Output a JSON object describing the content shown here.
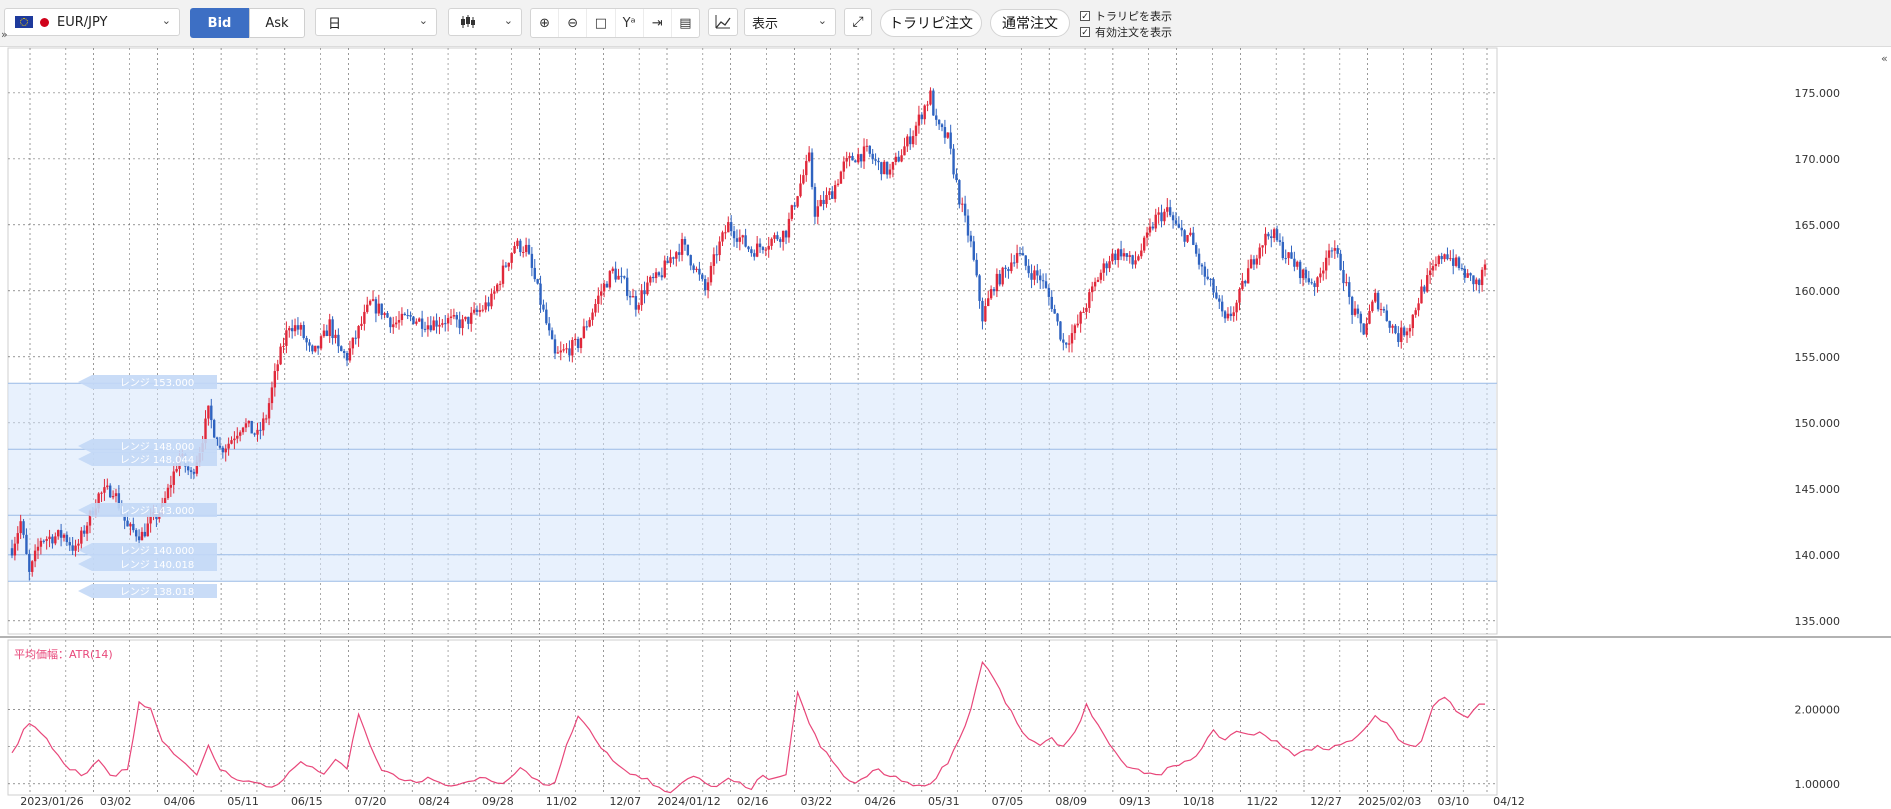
{
  "toolbar": {
    "symbol": "EUR/JPY",
    "flag_left_icon": "eu-flag-icon",
    "flag_right_icon": "japan-flag-icon",
    "bid_label": "Bid",
    "ask_label": "Ask",
    "timeframe": "日",
    "chart_type_icon": "candlestick-icon",
    "tools": [
      "zoom-in-icon",
      "zoom-out-icon",
      "fit-screen-icon",
      "crosshair-lock-icon",
      "jump-to-latest-icon",
      "document-icon"
    ],
    "indicator_icon": "add-indicator-icon",
    "display_select": "表示",
    "expand_icon": "expand-icon",
    "trap_order_button": "トラリピ注文",
    "normal_order_button": "通常注文",
    "show_trap_label": "トラリピを表示",
    "show_active_orders_label": "有効注文を表示",
    "accent_color": "#3d6fc4"
  },
  "chart_data": {
    "type": "candlestick",
    "series": [
      {
        "name": "EUR/JPY"
      }
    ],
    "x_tick_labels": [
      "2023/01/26",
      "03/02",
      "04/06",
      "05/11",
      "06/15",
      "07/20",
      "08/24",
      "09/28",
      "11/02",
      "12/07",
      "2024/01/12",
      "02/16",
      "03/22",
      "04/26",
      "05/31",
      "07/05",
      "08/09",
      "09/13",
      "10/18",
      "11/22",
      "12/27",
      "2025/02/03",
      "03/10",
      "04/12"
    ],
    "y_tick_labels": [
      "175.000",
      "170.000",
      "165.000",
      "160.000",
      "155.000",
      "150.000",
      "145.000",
      "140.000",
      "135.000"
    ],
    "ylim": [
      134,
      178.4
    ],
    "price_path": [
      [
        0,
        140.5
      ],
      [
        3,
        142.5
      ],
      [
        6,
        138.5
      ],
      [
        10,
        141.2
      ],
      [
        18,
        141.5
      ],
      [
        22,
        140.3
      ],
      [
        30,
        144.5
      ],
      [
        35,
        145.0
      ],
      [
        40,
        142.0
      ],
      [
        45,
        141.5
      ],
      [
        48,
        142.5
      ],
      [
        52,
        143.5
      ],
      [
        58,
        147.5
      ],
      [
        62,
        146.0
      ],
      [
        65,
        148.0
      ],
      [
        68,
        150.8
      ],
      [
        72,
        148.0
      ],
      [
        75,
        148.5
      ],
      [
        80,
        150.0
      ],
      [
        85,
        149.0
      ],
      [
        88,
        150.5
      ],
      [
        92,
        154.5
      ],
      [
        96,
        157.5
      ],
      [
        100,
        157.0
      ],
      [
        104,
        155.0
      ],
      [
        108,
        156.5
      ],
      [
        110,
        157.5
      ],
      [
        113,
        155.5
      ],
      [
        116,
        155.0
      ],
      [
        120,
        157.0
      ],
      [
        124,
        159.0
      ],
      [
        128,
        158.5
      ],
      [
        132,
        157.5
      ],
      [
        138,
        158.0
      ],
      [
        144,
        157.5
      ],
      [
        150,
        157.8
      ],
      [
        156,
        157.5
      ],
      [
        162,
        158.5
      ],
      [
        166,
        159.3
      ],
      [
        170,
        161.5
      ],
      [
        174,
        163.5
      ],
      [
        178,
        163.2
      ],
      [
        182,
        160.0
      ],
      [
        185,
        157.5
      ],
      [
        188,
        155.0
      ],
      [
        192,
        155.5
      ],
      [
        196,
        156.0
      ],
      [
        200,
        158.0
      ],
      [
        204,
        160.0
      ],
      [
        208,
        161.5
      ],
      [
        212,
        160.5
      ],
      [
        216,
        159.0
      ],
      [
        220,
        160.5
      ],
      [
        224,
        161.0
      ],
      [
        228,
        162.5
      ],
      [
        232,
        163.5
      ],
      [
        236,
        162.0
      ],
      [
        240,
        160.0
      ],
      [
        244,
        163.0
      ],
      [
        248,
        165.0
      ],
      [
        252,
        164.0
      ],
      [
        256,
        163.0
      ],
      [
        260,
        163.5
      ],
      [
        264,
        164.0
      ],
      [
        268,
        164.5
      ],
      [
        272,
        167.5
      ],
      [
        276,
        170.0
      ],
      [
        278,
        166.0
      ],
      [
        280,
        166.5
      ],
      [
        284,
        167.5
      ],
      [
        288,
        169.5
      ],
      [
        292,
        170.2
      ],
      [
        296,
        170.5
      ],
      [
        300,
        169.5
      ],
      [
        304,
        169.0
      ],
      [
        308,
        170.5
      ],
      [
        312,
        172.0
      ],
      [
        316,
        174.0
      ],
      [
        318,
        174.8
      ],
      [
        320,
        172.5
      ],
      [
        324,
        171.5
      ],
      [
        328,
        167.0
      ],
      [
        332,
        163.5
      ],
      [
        336,
        158.0
      ],
      [
        340,
        160.5
      ],
      [
        344,
        161.5
      ],
      [
        348,
        163.0
      ],
      [
        352,
        161.5
      ],
      [
        356,
        161.0
      ],
      [
        360,
        159.0
      ],
      [
        364,
        156.0
      ],
      [
        368,
        157.0
      ],
      [
        372,
        159.0
      ],
      [
        376,
        161.0
      ],
      [
        380,
        162.5
      ],
      [
        384,
        163.0
      ],
      [
        388,
        162.0
      ],
      [
        392,
        163.5
      ],
      [
        396,
        165.5
      ],
      [
        400,
        166.0
      ],
      [
        404,
        164.5
      ],
      [
        408,
        164.0
      ],
      [
        412,
        161.5
      ],
      [
        416,
        160.0
      ],
      [
        420,
        157.5
      ],
      [
        424,
        159.0
      ],
      [
        428,
        161.5
      ],
      [
        432,
        163.5
      ],
      [
        436,
        164.5
      ],
      [
        440,
        163.0
      ],
      [
        444,
        162.0
      ],
      [
        448,
        161.0
      ],
      [
        452,
        160.5
      ],
      [
        456,
        163.5
      ],
      [
        460,
        162.0
      ],
      [
        464,
        158.5
      ],
      [
        468,
        157.0
      ],
      [
        472,
        159.5
      ],
      [
        476,
        158.0
      ],
      [
        480,
        156.5
      ],
      [
        484,
        157.5
      ],
      [
        488,
        160.0
      ],
      [
        492,
        161.5
      ],
      [
        496,
        163.0
      ],
      [
        500,
        162.0
      ],
      [
        504,
        161.0
      ],
      [
        508,
        160.5
      ],
      [
        510,
        162.0
      ]
    ],
    "trap_ranges": [
      {
        "label": "レンジ 153.000",
        "level": 153.0
      },
      {
        "label": "レンジ 148.000",
        "level": 148.0
      },
      {
        "label": "レンジ 148.044",
        "level": 148.044
      },
      {
        "label": "レンジ 143.000",
        "level": 143.0
      },
      {
        "label": "レンジ 140.000",
        "level": 140.0
      },
      {
        "label": "レンジ 140.018",
        "level": 140.018
      },
      {
        "label": "レンジ 138.018",
        "level": 138.018
      }
    ],
    "trap_zone": [
      138.0,
      153.0
    ],
    "grid": true,
    "up_color": "#e0283a",
    "down_color": "#2f63c0",
    "sub_chart": {
      "type": "line",
      "title": "平均価幅：ATR(14)",
      "y_tick_labels": [
        "2.00000",
        "1.00000"
      ],
      "ylim": [
        0.85,
        2.93
      ],
      "color": "#e8477a",
      "path": [
        [
          0,
          1.4
        ],
        [
          5,
          1.8
        ],
        [
          10,
          1.7
        ],
        [
          15,
          1.4
        ],
        [
          20,
          1.2
        ],
        [
          25,
          1.1
        ],
        [
          30,
          1.3
        ],
        [
          35,
          1.1
        ],
        [
          40,
          1.2
        ],
        [
          44,
          2.1
        ],
        [
          48,
          2.0
        ],
        [
          52,
          1.6
        ],
        [
          56,
          1.4
        ],
        [
          60,
          1.3
        ],
        [
          64,
          1.1
        ],
        [
          68,
          1.5
        ],
        [
          72,
          1.2
        ],
        [
          76,
          1.1
        ],
        [
          80,
          1.05
        ],
        [
          85,
          1.0
        ],
        [
          90,
          0.95
        ],
        [
          95,
          1.1
        ],
        [
          100,
          1.3
        ],
        [
          104,
          1.2
        ],
        [
          108,
          1.15
        ],
        [
          112,
          1.3
        ],
        [
          116,
          1.2
        ],
        [
          120,
          1.95
        ],
        [
          124,
          1.5
        ],
        [
          128,
          1.2
        ],
        [
          132,
          1.1
        ],
        [
          136,
          1.05
        ],
        [
          140,
          1.0
        ],
        [
          144,
          1.1
        ],
        [
          148,
          1.0
        ],
        [
          152,
          0.95
        ],
        [
          156,
          1.0
        ],
        [
          160,
          1.05
        ],
        [
          164,
          1.1
        ],
        [
          168,
          1.0
        ],
        [
          172,
          1.05
        ],
        [
          176,
          1.2
        ],
        [
          180,
          1.1
        ],
        [
          184,
          1.0
        ],
        [
          188,
          1.0
        ],
        [
          192,
          1.5
        ],
        [
          196,
          1.9
        ],
        [
          200,
          1.7
        ],
        [
          204,
          1.5
        ],
        [
          208,
          1.3
        ],
        [
          212,
          1.2
        ],
        [
          216,
          1.1
        ],
        [
          220,
          1.05
        ],
        [
          224,
          0.95
        ],
        [
          228,
          0.9
        ],
        [
          232,
          1.0
        ],
        [
          236,
          1.1
        ],
        [
          240,
          1.0
        ],
        [
          244,
          0.95
        ],
        [
          248,
          1.05
        ],
        [
          252,
          1.0
        ],
        [
          256,
          0.95
        ],
        [
          260,
          1.1
        ],
        [
          264,
          1.05
        ],
        [
          268,
          1.1
        ],
        [
          272,
          2.25
        ],
        [
          276,
          1.8
        ],
        [
          280,
          1.5
        ],
        [
          284,
          1.3
        ],
        [
          288,
          1.1
        ],
        [
          292,
          1.0
        ],
        [
          296,
          1.1
        ],
        [
          300,
          1.2
        ],
        [
          304,
          1.1
        ],
        [
          308,
          1.05
        ],
        [
          312,
          1.0
        ],
        [
          316,
          0.95
        ],
        [
          320,
          1.1
        ],
        [
          324,
          1.3
        ],
        [
          328,
          1.6
        ],
        [
          332,
          2.0
        ],
        [
          336,
          2.65
        ],
        [
          340,
          2.4
        ],
        [
          344,
          2.1
        ],
        [
          348,
          1.8
        ],
        [
          352,
          1.6
        ],
        [
          356,
          1.5
        ],
        [
          360,
          1.6
        ],
        [
          364,
          1.5
        ],
        [
          368,
          1.7
        ],
        [
          372,
          2.05
        ],
        [
          376,
          1.8
        ],
        [
          380,
          1.5
        ],
        [
          384,
          1.3
        ],
        [
          388,
          1.2
        ],
        [
          392,
          1.15
        ],
        [
          396,
          1.1
        ],
        [
          400,
          1.2
        ],
        [
          404,
          1.25
        ],
        [
          408,
          1.3
        ],
        [
          412,
          1.5
        ],
        [
          416,
          1.7
        ],
        [
          420,
          1.6
        ],
        [
          424,
          1.7
        ],
        [
          428,
          1.65
        ],
        [
          432,
          1.7
        ],
        [
          436,
          1.6
        ],
        [
          440,
          1.5
        ],
        [
          444,
          1.4
        ],
        [
          448,
          1.45
        ],
        [
          452,
          1.5
        ],
        [
          456,
          1.45
        ],
        [
          460,
          1.55
        ],
        [
          464,
          1.6
        ],
        [
          468,
          1.7
        ],
        [
          472,
          1.9
        ],
        [
          476,
          1.8
        ],
        [
          480,
          1.6
        ],
        [
          484,
          1.5
        ],
        [
          488,
          1.55
        ],
        [
          492,
          2.05
        ],
        [
          496,
          2.15
        ],
        [
          500,
          2.0
        ],
        [
          504,
          1.9
        ],
        [
          508,
          2.1
        ],
        [
          510,
          2.05
        ]
      ]
    }
  }
}
